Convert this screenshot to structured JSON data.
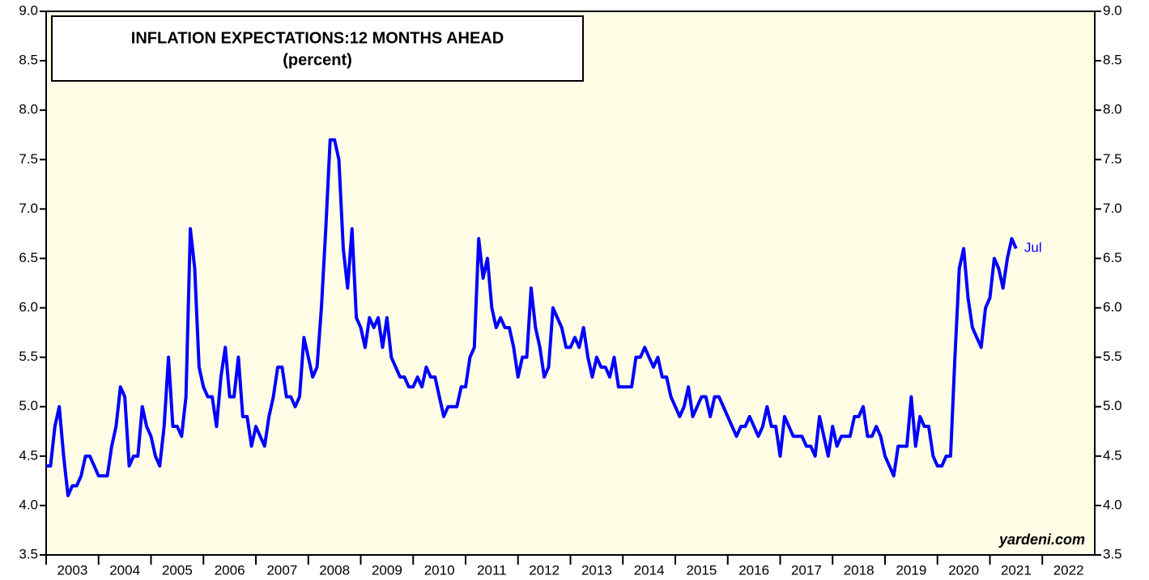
{
  "chart_data": {
    "type": "line",
    "title": "INFLATION EXPECTATIONS:12 MONTHS AHEAD",
    "subtitle": "(percent)",
    "annotations": {
      "last_point": "Jul",
      "source": "yardeni.com"
    },
    "x": [
      "2003-01",
      "2003-02",
      "2003-03",
      "2003-04",
      "2003-05",
      "2003-06",
      "2003-07",
      "2003-08",
      "2003-09",
      "2003-10",
      "2003-11",
      "2003-12",
      "2004-01",
      "2004-02",
      "2004-03",
      "2004-04",
      "2004-05",
      "2004-06",
      "2004-07",
      "2004-08",
      "2004-09",
      "2004-10",
      "2004-11",
      "2004-12",
      "2005-01",
      "2005-02",
      "2005-03",
      "2005-04",
      "2005-05",
      "2005-06",
      "2005-07",
      "2005-08",
      "2005-09",
      "2005-10",
      "2005-11",
      "2005-12",
      "2006-01",
      "2006-02",
      "2006-03",
      "2006-04",
      "2006-05",
      "2006-06",
      "2006-07",
      "2006-08",
      "2006-09",
      "2006-10",
      "2006-11",
      "2006-12",
      "2007-01",
      "2007-02",
      "2007-03",
      "2007-04",
      "2007-05",
      "2007-06",
      "2007-07",
      "2007-08",
      "2007-09",
      "2007-10",
      "2007-11",
      "2007-12",
      "2008-01",
      "2008-02",
      "2008-03",
      "2008-04",
      "2008-05",
      "2008-06",
      "2008-07",
      "2008-08",
      "2008-09",
      "2008-10",
      "2008-11",
      "2008-12",
      "2009-01",
      "2009-02",
      "2009-03",
      "2009-04",
      "2009-05",
      "2009-06",
      "2009-07",
      "2009-08",
      "2009-09",
      "2009-10",
      "2009-11",
      "2009-12",
      "2010-01",
      "2010-02",
      "2010-03",
      "2010-04",
      "2010-05",
      "2010-06",
      "2010-07",
      "2010-08",
      "2010-09",
      "2010-10",
      "2010-11",
      "2010-12",
      "2011-01",
      "2011-02",
      "2011-03",
      "2011-04",
      "2011-05",
      "2011-06",
      "2011-07",
      "2011-08",
      "2011-09",
      "2011-10",
      "2011-11",
      "2011-12",
      "2012-01",
      "2012-02",
      "2012-03",
      "2012-04",
      "2012-05",
      "2012-06",
      "2012-07",
      "2012-08",
      "2012-09",
      "2012-10",
      "2012-11",
      "2012-12",
      "2013-01",
      "2013-02",
      "2013-03",
      "2013-04",
      "2013-05",
      "2013-06",
      "2013-07",
      "2013-08",
      "2013-09",
      "2013-10",
      "2013-11",
      "2013-12",
      "2014-01",
      "2014-02",
      "2014-03",
      "2014-04",
      "2014-05",
      "2014-06",
      "2014-07",
      "2014-08",
      "2014-09",
      "2014-10",
      "2014-11",
      "2014-12",
      "2015-01",
      "2015-02",
      "2015-03",
      "2015-04",
      "2015-05",
      "2015-06",
      "2015-07",
      "2015-08",
      "2015-09",
      "2015-10",
      "2015-11",
      "2015-12",
      "2016-01",
      "2016-02",
      "2016-03",
      "2016-04",
      "2016-05",
      "2016-06",
      "2016-07",
      "2016-08",
      "2016-09",
      "2016-10",
      "2016-11",
      "2016-12",
      "2017-01",
      "2017-02",
      "2017-03",
      "2017-04",
      "2017-05",
      "2017-06",
      "2017-07",
      "2017-08",
      "2017-09",
      "2017-10",
      "2017-11",
      "2017-12",
      "2018-01",
      "2018-02",
      "2018-03",
      "2018-04",
      "2018-05",
      "2018-06",
      "2018-07",
      "2018-08",
      "2018-09",
      "2018-10",
      "2018-11",
      "2018-12",
      "2019-01",
      "2019-02",
      "2019-03",
      "2019-04",
      "2019-05",
      "2019-06",
      "2019-07",
      "2019-08",
      "2019-09",
      "2019-10",
      "2019-11",
      "2019-12",
      "2020-01",
      "2020-02",
      "2020-03",
      "2020-04",
      "2020-05",
      "2020-06",
      "2020-07",
      "2020-08",
      "2020-09",
      "2020-10",
      "2020-11",
      "2020-12",
      "2021-01",
      "2021-02",
      "2021-03",
      "2021-04",
      "2021-05",
      "2021-06",
      "2021-07"
    ],
    "series": [
      {
        "name": "Inflation expectations",
        "color": "#0000ff",
        "values": [
          4.4,
          4.4,
          4.8,
          5.0,
          4.5,
          4.1,
          4.2,
          4.2,
          4.3,
          4.5,
          4.5,
          4.4,
          4.3,
          4.3,
          4.3,
          4.6,
          4.8,
          5.2,
          5.1,
          4.4,
          4.5,
          4.5,
          5.0,
          4.8,
          4.7,
          4.5,
          4.4,
          4.8,
          5.5,
          4.8,
          4.8,
          4.7,
          5.1,
          6.8,
          6.4,
          5.4,
          5.2,
          5.1,
          5.1,
          4.8,
          5.3,
          5.6,
          5.1,
          5.1,
          5.5,
          4.9,
          4.9,
          4.6,
          4.8,
          4.7,
          4.6,
          4.9,
          5.1,
          5.4,
          5.4,
          5.1,
          5.1,
          5.0,
          5.1,
          5.7,
          5.5,
          5.3,
          5.4,
          6.0,
          6.8,
          7.7,
          7.7,
          7.5,
          6.6,
          6.2,
          6.8,
          5.9,
          5.8,
          5.6,
          5.9,
          5.8,
          5.9,
          5.6,
          5.9,
          5.5,
          5.4,
          5.3,
          5.3,
          5.2,
          5.2,
          5.3,
          5.2,
          5.4,
          5.3,
          5.3,
          5.1,
          4.9,
          5.0,
          5.0,
          5.0,
          5.2,
          5.2,
          5.5,
          5.6,
          6.7,
          6.3,
          6.5,
          6.0,
          5.8,
          5.9,
          5.8,
          5.8,
          5.6,
          5.3,
          5.5,
          5.5,
          6.2,
          5.8,
          5.6,
          5.3,
          5.4,
          6.0,
          5.9,
          5.8,
          5.6,
          5.6,
          5.7,
          5.6,
          5.8,
          5.5,
          5.3,
          5.5,
          5.4,
          5.4,
          5.3,
          5.5,
          5.2,
          5.2,
          5.2,
          5.2,
          5.5,
          5.5,
          5.6,
          5.5,
          5.4,
          5.5,
          5.3,
          5.3,
          5.1,
          5.0,
          4.9,
          5.0,
          5.2,
          4.9,
          5.0,
          5.1,
          5.1,
          4.9,
          5.1,
          5.1,
          5.0,
          4.9,
          4.8,
          4.7,
          4.8,
          4.8,
          4.9,
          4.8,
          4.7,
          4.8,
          5.0,
          4.8,
          4.8,
          4.5,
          4.9,
          4.8,
          4.7,
          4.7,
          4.7,
          4.6,
          4.6,
          4.5,
          4.9,
          4.7,
          4.5,
          4.8,
          4.6,
          4.7,
          4.7,
          4.7,
          4.9,
          4.9,
          5.0,
          4.7,
          4.7,
          4.8,
          4.7,
          4.5,
          4.4,
          4.3,
          4.6,
          4.6,
          4.6,
          5.1,
          4.6,
          4.9,
          4.8,
          4.8,
          4.5,
          4.4,
          4.4,
          4.5,
          4.5,
          5.5,
          6.4,
          6.6,
          6.1,
          5.8,
          5.7,
          5.6,
          6.0,
          6.1,
          6.5,
          6.4,
          6.2,
          6.5,
          6.7,
          6.6
        ]
      }
    ],
    "xlim": [
      2003,
      2023
    ],
    "xticks": [
      2003,
      2004,
      2005,
      2006,
      2007,
      2008,
      2009,
      2010,
      2011,
      2012,
      2013,
      2014,
      2015,
      2016,
      2017,
      2018,
      2019,
      2020,
      2021,
      2022
    ],
    "ylim": [
      3.5,
      9.0
    ],
    "yticks": [
      3.5,
      {
        "value": 4,
        "label": "4.0"
      },
      4.5,
      {
        "value": 5,
        "label": "5.0"
      },
      5.5,
      {
        "value": 6,
        "label": "6.0"
      },
      6.5,
      {
        "value": 7,
        "label": "7.0"
      },
      7.5,
      {
        "value": 8,
        "label": "8.0"
      },
      8.5,
      {
        "value": 9,
        "label": "9.0"
      }
    ],
    "right_axis": true,
    "grid": false,
    "background": "#fffde6"
  }
}
